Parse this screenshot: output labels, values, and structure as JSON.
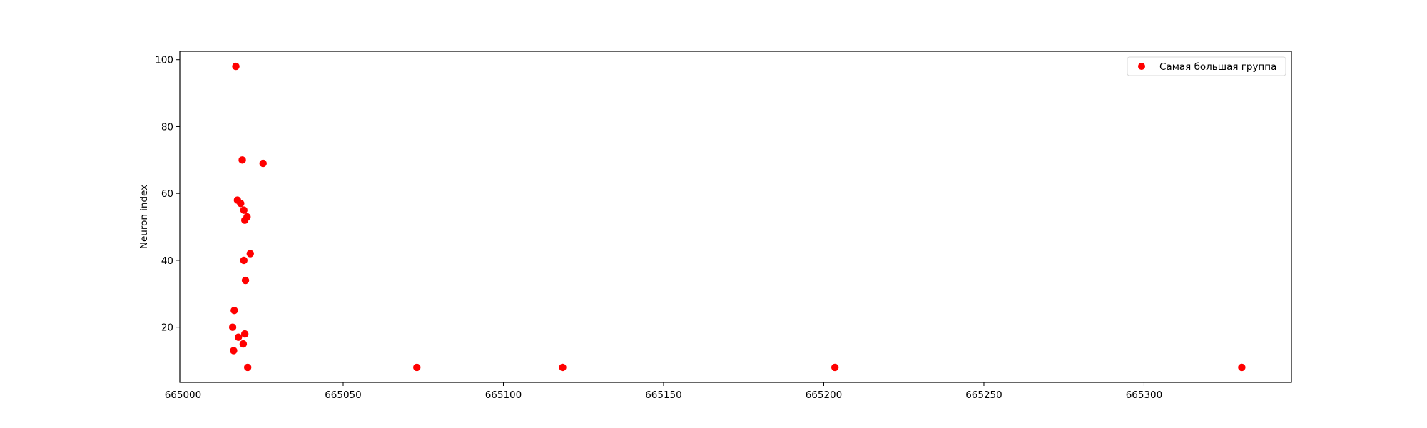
{
  "chart_data": {
    "type": "scatter",
    "title": "",
    "xlabel": "",
    "ylabel": "Neuron index",
    "xlim": [
      664999,
      665346
    ],
    "ylim": [
      3.5,
      102.5
    ],
    "xticks": [
      665000,
      665050,
      665100,
      665150,
      665200,
      665250,
      665300
    ],
    "yticks": [
      20,
      40,
      60,
      80,
      100
    ],
    "grid": false,
    "legend": {
      "placement": "top-right"
    },
    "series": [
      {
        "name": "Самая большая группа",
        "color": "#ff0000",
        "points": [
          {
            "x": 665016.5,
            "y": 98
          },
          {
            "x": 665018.5,
            "y": 70
          },
          {
            "x": 665025,
            "y": 69
          },
          {
            "x": 665017,
            "y": 58
          },
          {
            "x": 665018,
            "y": 57
          },
          {
            "x": 665019,
            "y": 55
          },
          {
            "x": 665020,
            "y": 53
          },
          {
            "x": 665019.3,
            "y": 52
          },
          {
            "x": 665021,
            "y": 42
          },
          {
            "x": 665019,
            "y": 40
          },
          {
            "x": 665019.5,
            "y": 34
          },
          {
            "x": 665016,
            "y": 25
          },
          {
            "x": 665015.5,
            "y": 20
          },
          {
            "x": 665019.3,
            "y": 18
          },
          {
            "x": 665017.3,
            "y": 17
          },
          {
            "x": 665018.8,
            "y": 15
          },
          {
            "x": 665015.8,
            "y": 13
          },
          {
            "x": 665020.2,
            "y": 8
          },
          {
            "x": 665073,
            "y": 8
          },
          {
            "x": 665118.5,
            "y": 8
          },
          {
            "x": 665203.5,
            "y": 8
          },
          {
            "x": 665330.5,
            "y": 8
          }
        ]
      }
    ]
  }
}
